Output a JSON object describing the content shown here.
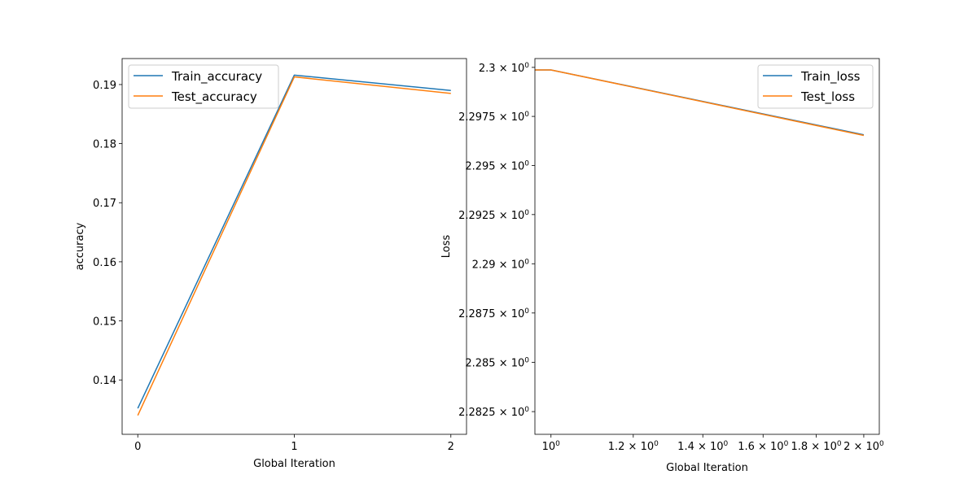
{
  "chart_data": [
    {
      "type": "line",
      "xlabel": "Global Iteration",
      "ylabel": "accuracy",
      "x": [
        0,
        1,
        2
      ],
      "xlim": [
        -0.1,
        2.1
      ],
      "ylim": [
        0.1308,
        0.1944
      ],
      "xticks": [
        0,
        1,
        2
      ],
      "xtick_labels": [
        "0",
        "1",
        "2"
      ],
      "yticks": [
        0.14,
        0.15,
        0.16,
        0.17,
        0.18,
        0.19
      ],
      "ytick_labels": [
        "0.14",
        "0.15",
        "0.16",
        "0.17",
        "0.18",
        "0.19"
      ],
      "legend_position": "top-left",
      "series": [
        {
          "name": "Train_accuracy",
          "color": "#1f77b4",
          "values": [
            0.1352,
            0.1916,
            0.189
          ]
        },
        {
          "name": "Test_accuracy",
          "color": "#ff7f0e",
          "values": [
            0.134,
            0.1913,
            0.1885
          ]
        }
      ]
    },
    {
      "type": "line",
      "xscale": "log",
      "yscale": "log",
      "xlabel": "Global Iteration",
      "ylabel": "Loss",
      "x": [
        1,
        2
      ],
      "xlim": [
        0.965,
        2.07
      ],
      "ylim": [
        2.28135,
        2.30045
      ],
      "xticks": [
        1,
        1.2,
        1.4,
        1.6,
        1.8,
        2
      ],
      "xtick_labels": [
        {
          "base": "10",
          "exp": "0"
        },
        {
          "base": "1.2 × 10",
          "exp": "0"
        },
        {
          "base": "1.4 × 10",
          "exp": "0"
        },
        {
          "base": "1.6 × 10",
          "exp": "0"
        },
        {
          "base": "1.8 × 10",
          "exp": "0"
        },
        {
          "base": "2 × 10",
          "exp": "0"
        }
      ],
      "yticks": [
        2.3,
        2.2975,
        2.295,
        2.2925,
        2.29,
        2.2875,
        2.285,
        2.2825
      ],
      "ytick_labels": [
        {
          "base": "2.3 × 10",
          "exp": "0"
        },
        {
          "base": "2.2975 × 10",
          "exp": "0"
        },
        {
          "base": "2.295 × 10",
          "exp": "0"
        },
        {
          "base": "2.2925 × 10",
          "exp": "0"
        },
        {
          "base": "2.29 × 10",
          "exp": "0"
        },
        {
          "base": "2.2875 × 10",
          "exp": "0"
        },
        {
          "base": "2.285 × 10",
          "exp": "0"
        },
        {
          "base": "2.2825 × 10",
          "exp": "0"
        }
      ],
      "legend_position": "top-right",
      "series": [
        {
          "name": "Train_loss",
          "color": "#1f77b4",
          "x": [
            0.965,
            1,
            2
          ],
          "values": [
            2.29987,
            2.29987,
            2.29656
          ]
        },
        {
          "name": "Test_loss",
          "color": "#ff7f0e",
          "x": [
            0.965,
            1,
            2
          ],
          "values": [
            2.29987,
            2.29987,
            2.29653
          ]
        }
      ]
    }
  ]
}
